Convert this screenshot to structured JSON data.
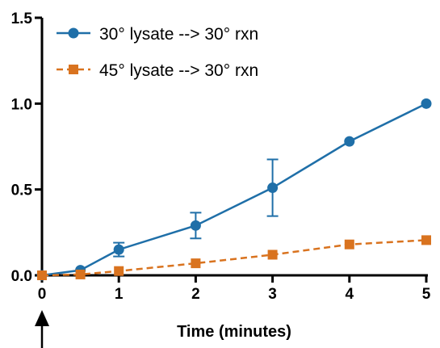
{
  "chart_data": {
    "type": "line",
    "xlabel": "Time (minutes)",
    "ylabel": "",
    "xlim": [
      0,
      5
    ],
    "ylim": [
      0,
      1.5
    ],
    "x_ticks": [
      "0",
      "1",
      "2",
      "3",
      "4",
      "5"
    ],
    "y_ticks": [
      "0.0",
      "0.5",
      "1.0",
      "1.5"
    ],
    "grid": false,
    "legend_position": "top-left",
    "series": [
      {
        "name": "30° lysate --> 30° rxn",
        "color": "#1f6fa8",
        "marker": "circle",
        "line_style": "solid",
        "x": [
          0,
          0.5,
          1,
          2,
          3,
          4,
          5
        ],
        "y": [
          0.0,
          0.03,
          0.15,
          0.29,
          0.51,
          0.78,
          1.0
        ],
        "error": [
          0,
          0,
          0.04,
          0.075,
          0.165,
          0,
          0
        ]
      },
      {
        "name": "45° lysate --> 30° rxn",
        "color": "#d9731f",
        "marker": "square",
        "line_style": "dashed",
        "x": [
          0,
          0.5,
          1,
          2,
          3,
          4,
          5
        ],
        "y": [
          0.0,
          0.005,
          0.025,
          0.07,
          0.12,
          0.18,
          0.205
        ],
        "error": [
          0,
          0,
          0,
          0,
          0,
          0,
          0
        ]
      }
    ],
    "annotations": [
      {
        "type": "arrow",
        "direction": "up",
        "x": 0
      }
    ]
  }
}
